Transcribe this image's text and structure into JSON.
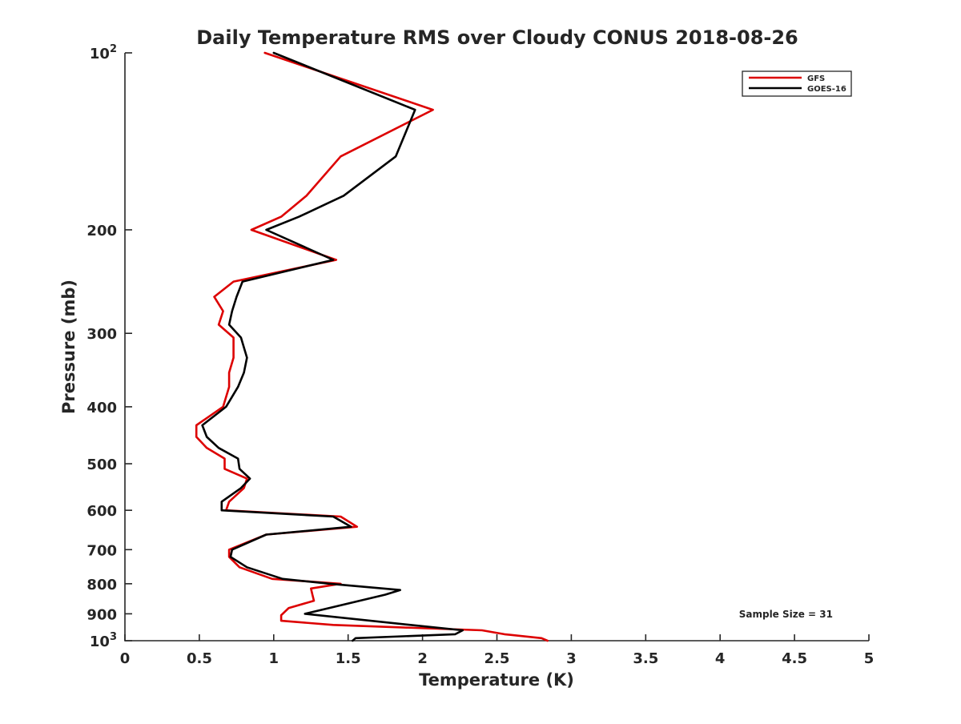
{
  "chart_data": {
    "type": "line",
    "title": "Daily Temperature RMS over Cloudy CONUS 2018-08-26",
    "xlabel": "Temperature (K)",
    "ylabel": "Pressure (mb)",
    "xlim": [
      0,
      5
    ],
    "ylim": [
      100,
      1000
    ],
    "y_scale": "log",
    "y_reversed": true,
    "grid": false,
    "legend_position": "top-right",
    "x_ticks": [
      0,
      0.5,
      1,
      1.5,
      2,
      2.5,
      3,
      3.5,
      4,
      4.5,
      5
    ],
    "x_tick_labels": [
      "0",
      "0.5",
      "1",
      "1.5",
      "2",
      "2.5",
      "3",
      "3.5",
      "4",
      "4.5",
      "5"
    ],
    "y_ticks": [
      {
        "value": 100,
        "base": "10",
        "exp": "2"
      },
      {
        "value": 200,
        "label": "200"
      },
      {
        "value": 300,
        "label": "300"
      },
      {
        "value": 400,
        "label": "400"
      },
      {
        "value": 500,
        "label": "500"
      },
      {
        "value": 600,
        "label": "600"
      },
      {
        "value": 700,
        "label": "700"
      },
      {
        "value": 800,
        "label": "800"
      },
      {
        "value": 900,
        "label": "900"
      },
      {
        "value": 1000,
        "base": "10",
        "exp": "3"
      }
    ],
    "annotation": "Sample Size = 31",
    "series": [
      {
        "name": "GFS",
        "color": "#dd0000",
        "points": [
          [
            0.94,
            100
          ],
          [
            2.07,
            125
          ],
          [
            1.45,
            150
          ],
          [
            1.22,
            175
          ],
          [
            1.05,
            190
          ],
          [
            0.85,
            200
          ],
          [
            1.42,
            225
          ],
          [
            0.73,
            245
          ],
          [
            0.6,
            260
          ],
          [
            0.66,
            275
          ],
          [
            0.63,
            290
          ],
          [
            0.73,
            305
          ],
          [
            0.73,
            330
          ],
          [
            0.7,
            350
          ],
          [
            0.7,
            370
          ],
          [
            0.66,
            400
          ],
          [
            0.48,
            430
          ],
          [
            0.48,
            450
          ],
          [
            0.55,
            470
          ],
          [
            0.67,
            490
          ],
          [
            0.67,
            510
          ],
          [
            0.82,
            530
          ],
          [
            0.8,
            550
          ],
          [
            0.7,
            580
          ],
          [
            0.68,
            600
          ],
          [
            1.45,
            615
          ],
          [
            1.56,
            640
          ],
          [
            0.95,
            660
          ],
          [
            0.7,
            700
          ],
          [
            0.7,
            720
          ],
          [
            0.77,
            750
          ],
          [
            0.99,
            785
          ],
          [
            1.45,
            800
          ],
          [
            1.25,
            815
          ],
          [
            1.26,
            835
          ],
          [
            1.27,
            855
          ],
          [
            1.1,
            880
          ],
          [
            1.05,
            905
          ],
          [
            1.05,
            925
          ],
          [
            1.4,
            940
          ],
          [
            2.4,
            960
          ],
          [
            2.55,
            975
          ],
          [
            2.8,
            990
          ],
          [
            2.84,
            1000
          ]
        ]
      },
      {
        "name": "GOES-16",
        "color": "#000000",
        "points": [
          [
            1.0,
            100
          ],
          [
            1.95,
            125
          ],
          [
            1.82,
            150
          ],
          [
            1.47,
            175
          ],
          [
            1.17,
            190
          ],
          [
            0.95,
            200
          ],
          [
            1.4,
            225
          ],
          [
            0.79,
            245
          ],
          [
            0.75,
            260
          ],
          [
            0.72,
            275
          ],
          [
            0.7,
            290
          ],
          [
            0.78,
            305
          ],
          [
            0.82,
            330
          ],
          [
            0.8,
            350
          ],
          [
            0.76,
            370
          ],
          [
            0.68,
            400
          ],
          [
            0.52,
            430
          ],
          [
            0.55,
            450
          ],
          [
            0.63,
            470
          ],
          [
            0.76,
            490
          ],
          [
            0.77,
            510
          ],
          [
            0.84,
            530
          ],
          [
            0.78,
            550
          ],
          [
            0.65,
            580
          ],
          [
            0.65,
            600
          ],
          [
            1.4,
            615
          ],
          [
            1.52,
            640
          ],
          [
            0.95,
            660
          ],
          [
            0.72,
            700
          ],
          [
            0.71,
            720
          ],
          [
            0.82,
            750
          ],
          [
            1.06,
            785
          ],
          [
            1.38,
            800
          ],
          [
            1.85,
            820
          ],
          [
            1.75,
            835
          ],
          [
            1.21,
            900
          ],
          [
            1.92,
            940
          ],
          [
            2.27,
            960
          ],
          [
            2.22,
            975
          ],
          [
            1.55,
            990
          ],
          [
            1.53,
            1000
          ]
        ]
      }
    ]
  }
}
